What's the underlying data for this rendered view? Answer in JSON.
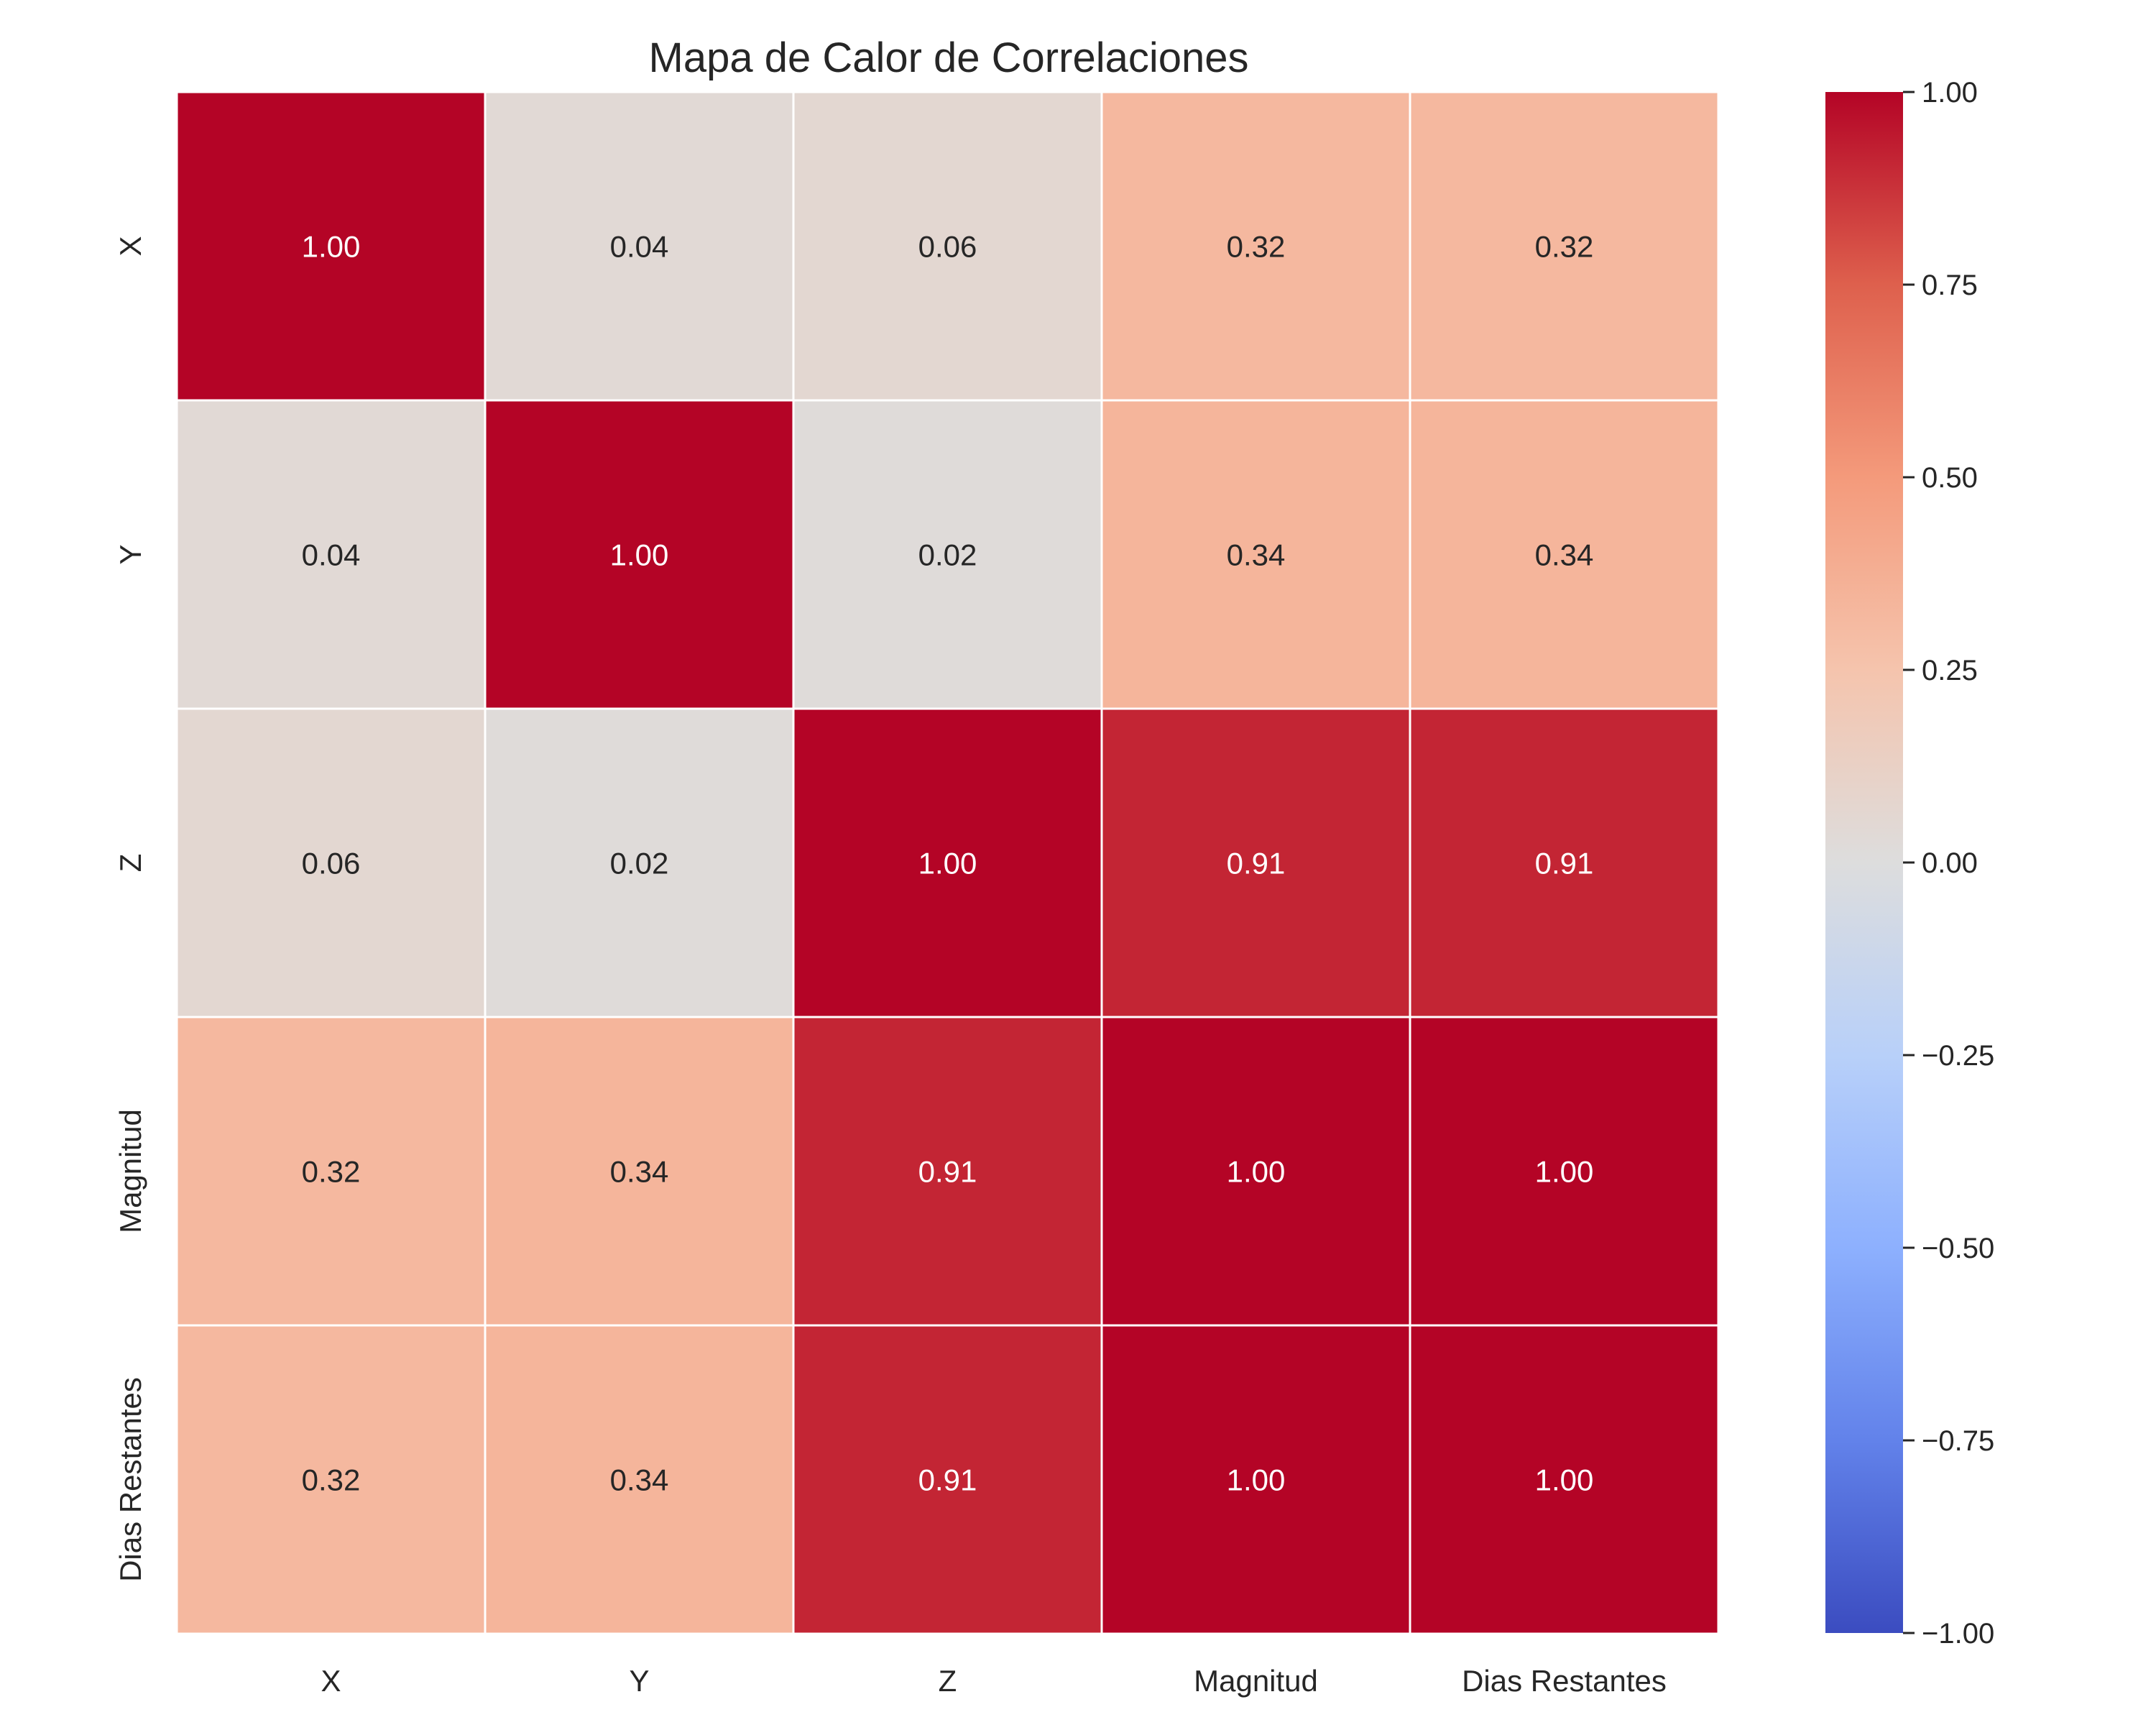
{
  "chart_data": {
    "type": "heatmap",
    "title": "Mapa de Calor de Correlaciones",
    "xlabel": "",
    "ylabel": "",
    "x_categories": [
      "X",
      "Y",
      "Z",
      "Magnitud",
      "Dias Restantes"
    ],
    "y_categories": [
      "X",
      "Y",
      "Z",
      "Magnitud",
      "Dias Restantes"
    ],
    "values": [
      [
        1.0,
        0.04,
        0.06,
        0.32,
        0.32
      ],
      [
        0.04,
        1.0,
        0.02,
        0.34,
        0.34
      ],
      [
        0.06,
        0.02,
        1.0,
        0.91,
        0.91
      ],
      [
        0.32,
        0.34,
        0.91,
        1.0,
        1.0
      ],
      [
        0.32,
        0.34,
        0.91,
        1.0,
        1.0
      ]
    ],
    "value_format": "0.00",
    "colormap": "coolwarm",
    "vmin": -1.0,
    "vmax": 1.0,
    "colorbar_ticks": [
      1.0,
      0.75,
      0.5,
      0.25,
      0.0,
      -0.25,
      -0.5,
      -0.75,
      -1.0
    ],
    "colorbar_tick_labels": [
      "1.00",
      "0.75",
      "0.50",
      "0.25",
      "0.00",
      "−0.25",
      "−0.50",
      "−0.75",
      "−1.00"
    ],
    "colorbar_placement": "right",
    "grid": false,
    "cell_border_color": "#ffffff"
  }
}
